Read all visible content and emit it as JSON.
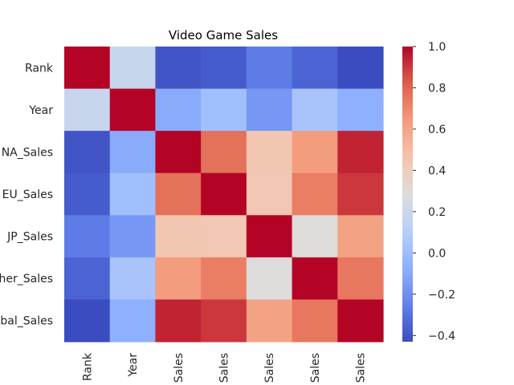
{
  "chart_data": {
    "type": "heatmap",
    "title": "Video Game Sales",
    "row_labels": [
      "Rank",
      "Year",
      "NA_Sales",
      "EU_Sales",
      "JP_Sales",
      "her_Sales",
      "bal_Sales"
    ],
    "col_labels": [
      "Rank",
      "Year",
      "Sales",
      "Sales",
      "Sales",
      "Sales",
      "Sales"
    ],
    "matrix": [
      [
        1.0,
        0.18,
        -0.4,
        -0.38,
        -0.27,
        -0.35,
        -0.43
      ],
      [
        0.18,
        1.0,
        -0.09,
        0.01,
        -0.17,
        0.04,
        -0.07
      ],
      [
        -0.4,
        -0.09,
        1.0,
        0.77,
        0.45,
        0.63,
        0.94
      ],
      [
        -0.38,
        0.01,
        0.77,
        1.0,
        0.44,
        0.73,
        0.9
      ],
      [
        -0.27,
        -0.17,
        0.45,
        0.44,
        1.0,
        0.29,
        0.61
      ],
      [
        -0.35,
        0.04,
        0.63,
        0.73,
        0.29,
        1.0,
        0.75
      ],
      [
        -0.43,
        -0.07,
        0.94,
        0.9,
        0.61,
        0.75,
        1.0
      ]
    ],
    "colormap": "coolwarm",
    "vmin": -0.43,
    "vmax": 1.0,
    "colorbar_ticks": [
      "1.0",
      "0.8",
      "0.6",
      "0.4",
      "0.2",
      "0.0",
      "−0.2",
      "−0.4"
    ],
    "colorbar_tick_values": [
      1.0,
      0.8,
      0.6,
      0.4,
      0.2,
      0.0,
      -0.2,
      -0.4
    ]
  }
}
